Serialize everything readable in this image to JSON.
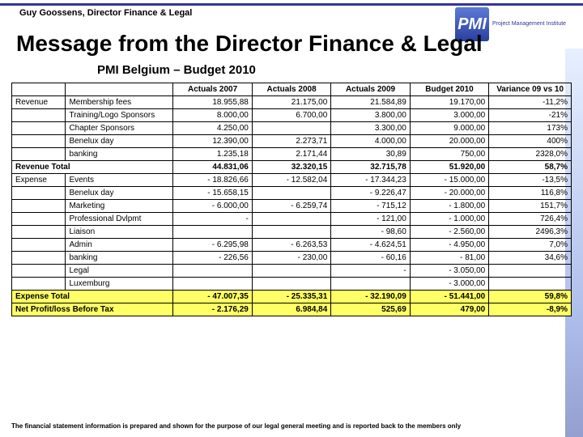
{
  "author": "Guy Goossens, Director Finance & Legal",
  "title": "Message from the Director Finance & Legal",
  "subtitle": "PMI Belgium – Budget 2010",
  "logo": {
    "badge": "PMI",
    "text": "Project Management Institute"
  },
  "headers": [
    "Actuals 2007",
    "Actuals 2008",
    "Actuals 2009",
    "Budget 2010",
    "Variance 09 vs 10"
  ],
  "rows": [
    {
      "cat1": "Revenue",
      "cat2": "Membership fees",
      "c": [
        {
          "v": "18.955,88"
        },
        {
          "v": "21.175,00"
        },
        {
          "v": "21.584,89"
        },
        {
          "v": "19.170,00"
        },
        {
          "v": "-11,2%"
        }
      ]
    },
    {
      "cat1": "",
      "cat2": "Training/Logo Sponsors",
      "c": [
        {
          "v": "8.000,00"
        },
        {
          "v": "6.700,00"
        },
        {
          "v": "3.800,00"
        },
        {
          "v": "3.000,00"
        },
        {
          "v": "-21%"
        }
      ]
    },
    {
      "cat1": "",
      "cat2": "Chapter Sponsors",
      "c": [
        {
          "v": "4.250,00"
        },
        {
          "v": ""
        },
        {
          "v": "3.300,00"
        },
        {
          "v": "9.000,00"
        },
        {
          "v": "173%"
        }
      ]
    },
    {
      "cat1": "",
      "cat2": "Benelux day",
      "c": [
        {
          "v": "12.390,00"
        },
        {
          "v": "2.273,71"
        },
        {
          "v": "4.000,00"
        },
        {
          "v": "20.000,00"
        },
        {
          "v": "400%"
        }
      ]
    },
    {
      "cat1": "",
      "cat2": "banking",
      "c": [
        {
          "v": "1.235,18"
        },
        {
          "v": "2.171,44"
        },
        {
          "v": "30,89"
        },
        {
          "v": "750,00"
        },
        {
          "v": "2328,0%"
        }
      ]
    },
    {
      "cat1": "Revenue Total",
      "cat2": "",
      "bold": true,
      "c": [
        {
          "v": "44.831,06"
        },
        {
          "v": "32.320,15"
        },
        {
          "v": "32.715,78"
        },
        {
          "v": "51.920,00"
        },
        {
          "v": "58,7%"
        }
      ]
    },
    {
      "cat1": "Expense",
      "cat2": "Events",
      "c": [
        {
          "v": "18.826,66",
          "n": true
        },
        {
          "v": "12.582,04",
          "n": true
        },
        {
          "v": "17.344,23",
          "n": true
        },
        {
          "v": "15.000,00",
          "n": true
        },
        {
          "v": "-13,5%"
        }
      ]
    },
    {
      "cat1": "",
      "cat2": "Benelux day",
      "c": [
        {
          "v": "15.658,15",
          "n": true
        },
        {
          "v": ""
        },
        {
          "v": "9.226,47",
          "n": true
        },
        {
          "v": "20.000,00",
          "n": true
        },
        {
          "v": "116,8%"
        }
      ]
    },
    {
      "cat1": "",
      "cat2": "Marketing",
      "c": [
        {
          "v": "6.000,00",
          "n": true
        },
        {
          "v": "6.259,74",
          "n": true
        },
        {
          "v": "715,12",
          "n": true
        },
        {
          "v": "1.800,00",
          "n": true
        },
        {
          "v": "151,7%"
        }
      ]
    },
    {
      "cat1": "",
      "cat2": "Professional Dvlpmt",
      "c": [
        {
          "v": "-"
        },
        {
          "v": ""
        },
        {
          "v": "121,00",
          "n": true
        },
        {
          "v": "1.000,00",
          "n": true
        },
        {
          "v": "726,4%"
        }
      ]
    },
    {
      "cat1": "",
      "cat2": "Liaison",
      "c": [
        {
          "v": ""
        },
        {
          "v": ""
        },
        {
          "v": "98,60",
          "n": true
        },
        {
          "v": "2.560,00",
          "n": true
        },
        {
          "v": "2496,3%"
        }
      ]
    },
    {
      "cat1": "",
      "cat2": "Admin",
      "c": [
        {
          "v": "6.295,98",
          "n": true
        },
        {
          "v": "6.263,53",
          "n": true
        },
        {
          "v": "4.624,51",
          "n": true
        },
        {
          "v": "4.950,00",
          "n": true
        },
        {
          "v": "7,0%"
        }
      ]
    },
    {
      "cat1": "",
      "cat2": "banking",
      "c": [
        {
          "v": "226,56",
          "n": true
        },
        {
          "v": "230,00",
          "n": true
        },
        {
          "v": "60,16",
          "n": true
        },
        {
          "v": "81,00",
          "n": true
        },
        {
          "v": "34,6%"
        }
      ]
    },
    {
      "cat1": "",
      "cat2": "Legal",
      "c": [
        {
          "v": ""
        },
        {
          "v": ""
        },
        {
          "v": "-"
        },
        {
          "v": "3.050,00",
          "n": true
        },
        {
          "v": ""
        }
      ]
    },
    {
      "cat1": "",
      "cat2": "Luxemburg",
      "c": [
        {
          "v": ""
        },
        {
          "v": ""
        },
        {
          "v": ""
        },
        {
          "v": "3.000,00",
          "n": true
        },
        {
          "v": ""
        }
      ]
    },
    {
      "cat1": "Expense Total",
      "cat2": "",
      "yellow": true,
      "c": [
        {
          "v": "47.007,35",
          "n": true
        },
        {
          "v": "25.335,31",
          "n": true
        },
        {
          "v": "32.190,09",
          "n": true
        },
        {
          "v": "51.441,00",
          "n": true
        },
        {
          "v": "59,8%"
        }
      ]
    },
    {
      "cat1": "Net Profit/loss Before Tax",
      "cat2": "",
      "yellow": true,
      "c": [
        {
          "v": "2.176,29",
          "n": true
        },
        {
          "v": "6.984,84"
        },
        {
          "v": "525,69"
        },
        {
          "v": "479,00"
        },
        {
          "v": "-8,9%"
        }
      ]
    }
  ],
  "footer": "The financial statement information is prepared and shown for the purpose of our legal general meeting and is reported back to the members only"
}
